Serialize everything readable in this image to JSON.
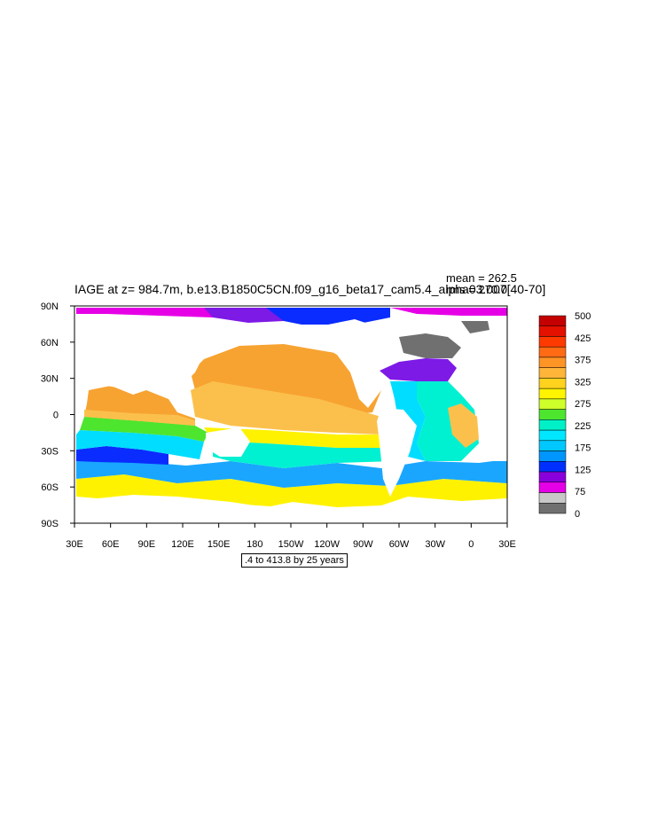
{
  "title": "IAGE at z= 984.7m, b.e13.B1850C5CN.f09_g16_beta17_cam5.4_alpha03.007[40-70]",
  "stats": {
    "mean": "mean = 262.5",
    "rms": "rms = 270.0"
  },
  "range_note": ".4 to 413.8 by 25 years",
  "axes": {
    "x_ticks": [
      "30E",
      "60E",
      "90E",
      "120E",
      "150E",
      "180",
      "150W",
      "120W",
      "90W",
      "60W",
      "30W",
      "0",
      "30E"
    ],
    "y_ticks": [
      "90N",
      "60N",
      "30N",
      "0",
      "30S",
      "60S",
      "90S"
    ]
  },
  "colorbar": {
    "labels": [
      "500",
      "425",
      "375",
      "325",
      "275",
      "225",
      "175",
      "125",
      "75",
      "0"
    ],
    "colors": [
      "#c40000",
      "#e41000",
      "#ff3a00",
      "#ff6a14",
      "#ff9426",
      "#ffb43a",
      "#ffd21e",
      "#fff500",
      "#cfff2a",
      "#4de52e",
      "#00f0c8",
      "#00e7ff",
      "#00c8ff",
      "#0096ff",
      "#0030ff",
      "#8a00dc",
      "#e600e6",
      "#c8c8c8",
      "#707070"
    ]
  },
  "map_colors": {
    "land": "#ffffff",
    "ice": "#707070",
    "orange": "#f7a331",
    "lightorange": "#fbc04c",
    "yellow": "#fff200",
    "lime": "#cfff2a",
    "green": "#4de52e",
    "cyan": "#00f0d2",
    "lightblue": "#00ddff",
    "blue": "#1aa6ff",
    "deepblue": "#0a2cff",
    "purple": "#7d1ae6",
    "magenta": "#e600e6"
  }
}
